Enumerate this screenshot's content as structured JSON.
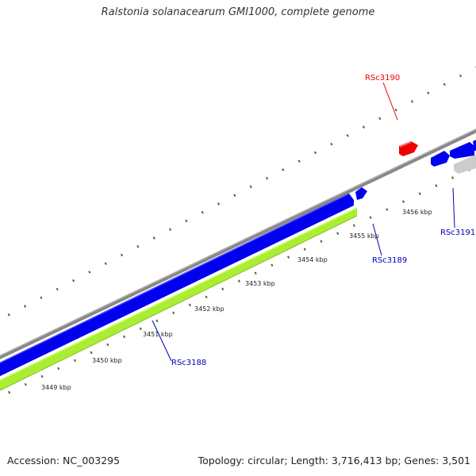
{
  "title": "Ralstonia solanacearum GMI1000, complete genome",
  "footer": {
    "accession": "Accession: NC_003295",
    "summary": "Topology: circular; Length: 3,716,413 bp; Genes: 3,501"
  },
  "colors": {
    "backbone": "#888888",
    "gc_dots": "#2a7a2a",
    "cds_forward": "#0000ee",
    "cds_reverse": "#0000ee",
    "rna_gene": "#ee0000",
    "other_feature": "#cccccc",
    "gc_skew": "#aaee33",
    "forward_label": "#ee0000",
    "reverse_label": "#0000bb"
  },
  "ticks": [
    {
      "label": "3449 kbp"
    },
    {
      "label": "3450 kbp"
    },
    {
      "label": "3451 kbp"
    },
    {
      "label": "3452 kbp"
    },
    {
      "label": "3453 kbp"
    },
    {
      "label": "3454 kbp"
    },
    {
      "label": "3455 kbp"
    },
    {
      "label": "3456 kbp"
    }
  ],
  "genes": [
    {
      "label": "RSc3188",
      "strand": "reverse"
    },
    {
      "label": "RSc3189",
      "strand": "reverse"
    },
    {
      "label": "RSc3190",
      "strand": "forward"
    },
    {
      "label": "RSc3191",
      "strand": "reverse"
    }
  ]
}
